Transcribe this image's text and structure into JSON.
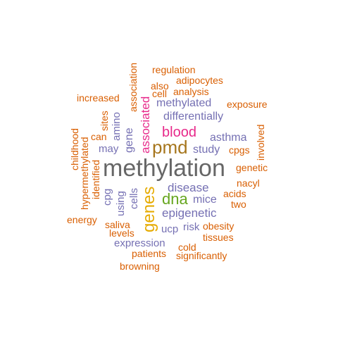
{
  "colors": {
    "orange": "#D95F02",
    "purple": "#7570B3",
    "gray": "#666666",
    "magenta": "#E7298A",
    "green": "#66A61E",
    "gold": "#E6AB02",
    "brown": "#A6761D"
  },
  "words": {
    "methylation": "methylation",
    "pmd": "pmd",
    "dna": "dna",
    "genes": "genes",
    "blood": "blood",
    "associated": "associated",
    "epigenetic": "epigenetic",
    "disease": "disease",
    "mice": "mice",
    "study": "study",
    "differentially": "differentially",
    "methylated": "methylated",
    "asthma": "asthma",
    "expression": "expression",
    "gene": "gene",
    "amino": "amino",
    "may": "may",
    "cells": "cells",
    "using": "using",
    "cpg": "cpg",
    "ucp": "ucp",
    "risk": "risk",
    "sites": "sites",
    "association": "association",
    "regulation": "regulation",
    "adipocytes": "adipocytes",
    "also": "also",
    "cell": "cell",
    "analysis": "analysis",
    "increased": "increased",
    "exposure": "exposure",
    "childhood": "childhood",
    "hypermethylated": "hypermethylated",
    "identified": "identified",
    "can": "can",
    "cpgs": "cpgs",
    "involved": "involved",
    "genetic": "genetic",
    "nacyl": "nacyl",
    "acids": "acids",
    "two": "two",
    "energy": "energy",
    "saliva": "saliva",
    "levels": "levels",
    "obesity": "obesity",
    "tissues": "tissues",
    "cold": "cold",
    "patients": "patients",
    "significantly": "significantly",
    "browning": "browning"
  }
}
